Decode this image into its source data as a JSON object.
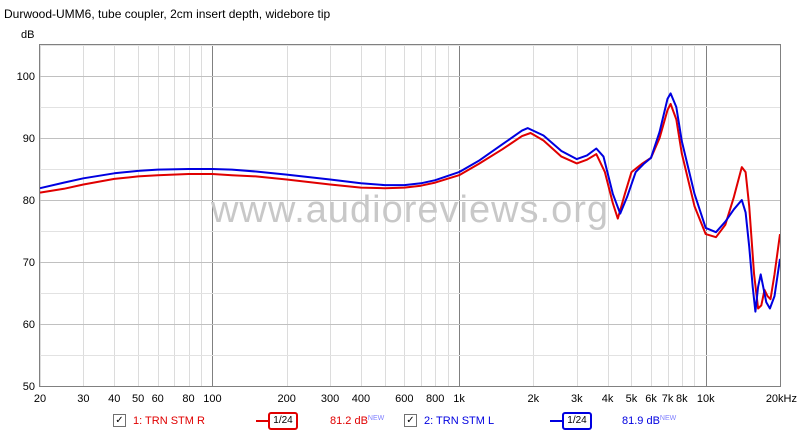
{
  "header": {
    "title": "Durwood-UMM6, tube coupler, 2cm insert depth, widebore tip"
  },
  "watermark": "www.audioreviews.org",
  "legend_items": [
    {
      "checked_glyph": "✓",
      "label": "1: TRN STM R",
      "smoothing": "1/24",
      "level": "81.2 dB",
      "badge": "NEW",
      "color": "#e00000"
    },
    {
      "checked_glyph": "✓",
      "label": "2: TRN STM L",
      "smoothing": "1/24",
      "level": "81.9 dB",
      "badge": "NEW",
      "color": "#0000e0"
    }
  ],
  "chart_data": {
    "type": "line",
    "title": "Durwood-UMM6, tube coupler, 2cm insert depth, widebore tip",
    "xlabel": "",
    "ylabel": "dB",
    "x_scale": "log",
    "xlim": [
      20,
      20000
    ],
    "ylim": [
      50,
      105
    ],
    "x_ticks": [
      {
        "value": 20,
        "label": "20"
      },
      {
        "value": 30,
        "label": "30"
      },
      {
        "value": 40,
        "label": "40"
      },
      {
        "value": 50,
        "label": "50"
      },
      {
        "value": 60,
        "label": "60"
      },
      {
        "value": 80,
        "label": "80"
      },
      {
        "value": 100,
        "label": "100"
      },
      {
        "value": 200,
        "label": "200"
      },
      {
        "value": 300,
        "label": "300"
      },
      {
        "value": 400,
        "label": "400"
      },
      {
        "value": 600,
        "label": "600"
      },
      {
        "value": 800,
        "label": "800"
      },
      {
        "value": 1000,
        "label": "1k"
      },
      {
        "value": 2000,
        "label": "2k"
      },
      {
        "value": 3000,
        "label": "3k"
      },
      {
        "value": 4000,
        "label": "4k"
      },
      {
        "value": 5000,
        "label": "5k"
      },
      {
        "value": 6000,
        "label": "6k"
      },
      {
        "value": 7000,
        "label": "7k"
      },
      {
        "value": 8000,
        "label": "8k"
      },
      {
        "value": 10000,
        "label": "10k"
      },
      {
        "value": 20000,
        "label": "20kHz"
      }
    ],
    "y_ticks": [
      {
        "value": 50,
        "label": "50"
      },
      {
        "value": 60,
        "label": "60"
      },
      {
        "value": 70,
        "label": "70"
      },
      {
        "value": 80,
        "label": "80"
      },
      {
        "value": 90,
        "label": "90"
      },
      {
        "value": 100,
        "label": "100"
      }
    ],
    "grid": true,
    "legend_position": "bottom",
    "series": [
      {
        "name": "1: TRN STM R",
        "color": "#e00000",
        "points": [
          [
            20,
            81.2
          ],
          [
            25,
            81.8
          ],
          [
            30,
            82.5
          ],
          [
            40,
            83.4
          ],
          [
            50,
            83.8
          ],
          [
            60,
            84.0
          ],
          [
            80,
            84.2
          ],
          [
            100,
            84.2
          ],
          [
            120,
            84.0
          ],
          [
            150,
            83.8
          ],
          [
            200,
            83.3
          ],
          [
            300,
            82.5
          ],
          [
            400,
            82.0
          ],
          [
            500,
            81.9
          ],
          [
            600,
            82.0
          ],
          [
            700,
            82.3
          ],
          [
            800,
            82.8
          ],
          [
            1000,
            84.0
          ],
          [
            1200,
            85.8
          ],
          [
            1500,
            88.2
          ],
          [
            1800,
            90.3
          ],
          [
            1950,
            90.8
          ],
          [
            2200,
            89.6
          ],
          [
            2600,
            87.0
          ],
          [
            3000,
            85.9
          ],
          [
            3300,
            86.5
          ],
          [
            3600,
            87.4
          ],
          [
            3900,
            84.5
          ],
          [
            4200,
            79.5
          ],
          [
            4400,
            77.0
          ],
          [
            4700,
            81.0
          ],
          [
            5000,
            84.5
          ],
          [
            5500,
            85.8
          ],
          [
            6000,
            86.8
          ],
          [
            6500,
            90.0
          ],
          [
            7000,
            94.5
          ],
          [
            7200,
            95.5
          ],
          [
            7600,
            93.0
          ],
          [
            8000,
            87.5
          ],
          [
            9000,
            79.0
          ],
          [
            10000,
            74.5
          ],
          [
            11000,
            74.0
          ],
          [
            12000,
            76.0
          ],
          [
            13000,
            80.5
          ],
          [
            14000,
            85.3
          ],
          [
            14500,
            84.5
          ],
          [
            15000,
            79.0
          ],
          [
            15700,
            68.0
          ],
          [
            16300,
            62.5
          ],
          [
            16800,
            63.0
          ],
          [
            17300,
            65.5
          ],
          [
            17800,
            64.5
          ],
          [
            18300,
            64.0
          ],
          [
            19000,
            68.0
          ],
          [
            20000,
            74.5
          ]
        ]
      },
      {
        "name": "2: TRN STM L",
        "color": "#0000e0",
        "points": [
          [
            20,
            81.9
          ],
          [
            25,
            82.8
          ],
          [
            30,
            83.5
          ],
          [
            40,
            84.3
          ],
          [
            50,
            84.7
          ],
          [
            60,
            84.9
          ],
          [
            80,
            85.0
          ],
          [
            100,
            85.0
          ],
          [
            120,
            84.9
          ],
          [
            150,
            84.6
          ],
          [
            200,
            84.1
          ],
          [
            300,
            83.3
          ],
          [
            400,
            82.7
          ],
          [
            500,
            82.4
          ],
          [
            600,
            82.4
          ],
          [
            700,
            82.7
          ],
          [
            800,
            83.2
          ],
          [
            1000,
            84.5
          ],
          [
            1200,
            86.3
          ],
          [
            1500,
            89.0
          ],
          [
            1800,
            91.2
          ],
          [
            1900,
            91.6
          ],
          [
            2200,
            90.4
          ],
          [
            2600,
            87.9
          ],
          [
            3000,
            86.6
          ],
          [
            3300,
            87.2
          ],
          [
            3600,
            88.3
          ],
          [
            3850,
            87.0
          ],
          [
            4200,
            81.0
          ],
          [
            4500,
            77.8
          ],
          [
            4800,
            80.5
          ],
          [
            5200,
            84.5
          ],
          [
            5600,
            85.8
          ],
          [
            6000,
            86.8
          ],
          [
            6500,
            91.0
          ],
          [
            7000,
            96.3
          ],
          [
            7200,
            97.2
          ],
          [
            7600,
            95.0
          ],
          [
            8000,
            89.5
          ],
          [
            9000,
            81.0
          ],
          [
            10000,
            75.5
          ],
          [
            11000,
            74.8
          ],
          [
            12000,
            76.5
          ],
          [
            13000,
            78.5
          ],
          [
            14000,
            80.0
          ],
          [
            14500,
            78.0
          ],
          [
            15000,
            72.5
          ],
          [
            15500,
            66.0
          ],
          [
            15900,
            62.0
          ],
          [
            16300,
            66.0
          ],
          [
            16700,
            68.0
          ],
          [
            17100,
            66.0
          ],
          [
            17600,
            63.5
          ],
          [
            18200,
            62.5
          ],
          [
            19000,
            64.5
          ],
          [
            20000,
            70.5
          ]
        ]
      }
    ]
  }
}
